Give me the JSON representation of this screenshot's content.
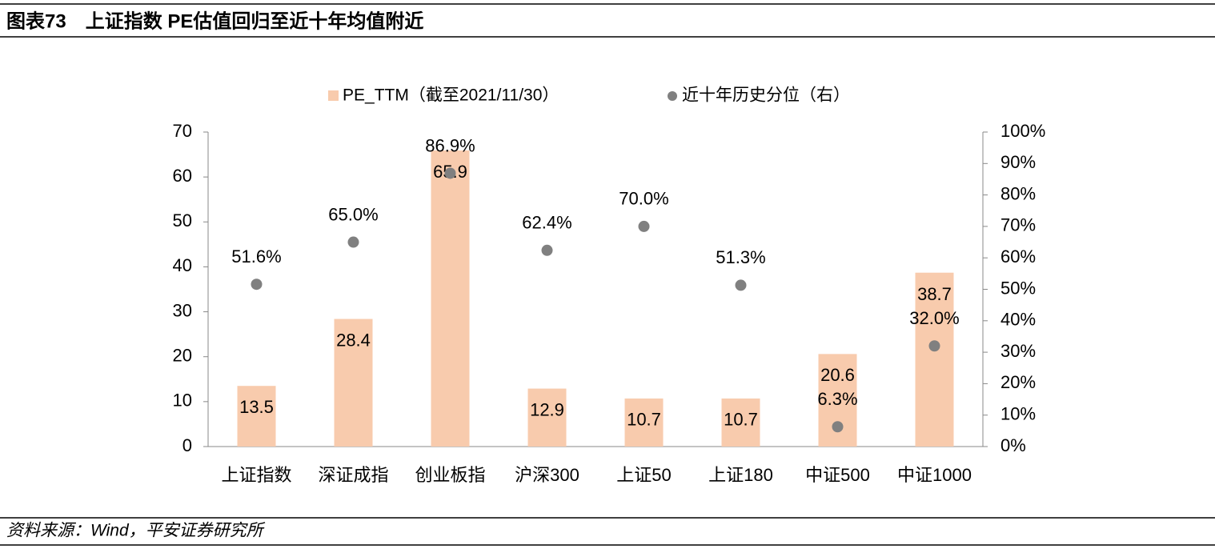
{
  "header": {
    "title": "图表73　上证指数 PE估值回归至近十年均值附近"
  },
  "chart_data": {
    "type": "bar",
    "categories": [
      "上证指数",
      "深证成指",
      "创业板指",
      "沪深300",
      "上证50",
      "上证180",
      "中证500",
      "中证1000"
    ],
    "series": [
      {
        "name": "PE_TTM（截至2021/11/30）",
        "type": "bar",
        "color": "#F8CBAD",
        "values": [
          13.5,
          28.4,
          65.9,
          12.9,
          10.7,
          10.7,
          20.6,
          38.7
        ]
      },
      {
        "name": "近十年历史分位（右）",
        "type": "scatter",
        "axis": "y2",
        "color": "#808080",
        "values": [
          51.6,
          65.0,
          86.9,
          62.4,
          70.0,
          51.3,
          6.3,
          32.0
        ],
        "value_labels": [
          "51.6%",
          "65.0%",
          "86.9%",
          "62.4%",
          "70.0%",
          "51.3%",
          "6.3%",
          "32.0%"
        ]
      }
    ],
    "ylim": [
      0,
      70
    ],
    "yticks": [
      0,
      10,
      20,
      30,
      40,
      50,
      60,
      70
    ],
    "y2lim": [
      0,
      100
    ],
    "y2ticks": [
      {
        "value": 0,
        "label": "0%"
      },
      {
        "value": 10,
        "label": "10%"
      },
      {
        "value": 20,
        "label": "20%"
      },
      {
        "value": 30,
        "label": "30%"
      },
      {
        "value": 40,
        "label": "40%"
      },
      {
        "value": 50,
        "label": "50%"
      },
      {
        "value": 60,
        "label": "60%"
      },
      {
        "value": 70,
        "label": "70%"
      },
      {
        "value": 80,
        "label": "80%"
      },
      {
        "value": 90,
        "label": "90%"
      },
      {
        "value": 100,
        "label": "100%"
      }
    ],
    "legend": "top"
  },
  "footer": {
    "source": "资料来源：Wind，平安证券研究所"
  }
}
